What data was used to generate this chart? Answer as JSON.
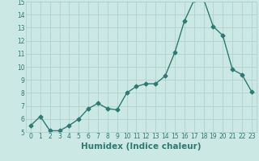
{
  "x": [
    0,
    1,
    2,
    3,
    4,
    5,
    6,
    7,
    8,
    9,
    10,
    11,
    12,
    13,
    14,
    15,
    16,
    17,
    18,
    19,
    20,
    21,
    22,
    23
  ],
  "y": [
    5.5,
    6.2,
    5.1,
    5.1,
    5.5,
    6.0,
    6.8,
    7.2,
    6.8,
    6.7,
    8.0,
    8.5,
    8.7,
    8.7,
    9.3,
    11.1,
    13.5,
    15.1,
    15.2,
    13.1,
    12.4,
    9.8,
    9.4,
    8.1
  ],
  "line_color": "#2d7a70",
  "marker": "D",
  "markersize": 2.5,
  "linewidth": 1.0,
  "bg_color": "#cce8e5",
  "grid_color": "#aacfcc",
  "xlabel": "Humidex (Indice chaleur)",
  "ylabel": "",
  "ylim": [
    5,
    15
  ],
  "xlim": [
    -0.5,
    23.5
  ],
  "yticks": [
    5,
    6,
    7,
    8,
    9,
    10,
    11,
    12,
    13,
    14,
    15
  ],
  "xticks": [
    0,
    1,
    2,
    3,
    4,
    5,
    6,
    7,
    8,
    9,
    10,
    11,
    12,
    13,
    14,
    15,
    16,
    17,
    18,
    19,
    20,
    21,
    22,
    23
  ],
  "tick_color": "#2d7a70",
  "tick_label_size": 5.5,
  "xlabel_size": 7.5
}
